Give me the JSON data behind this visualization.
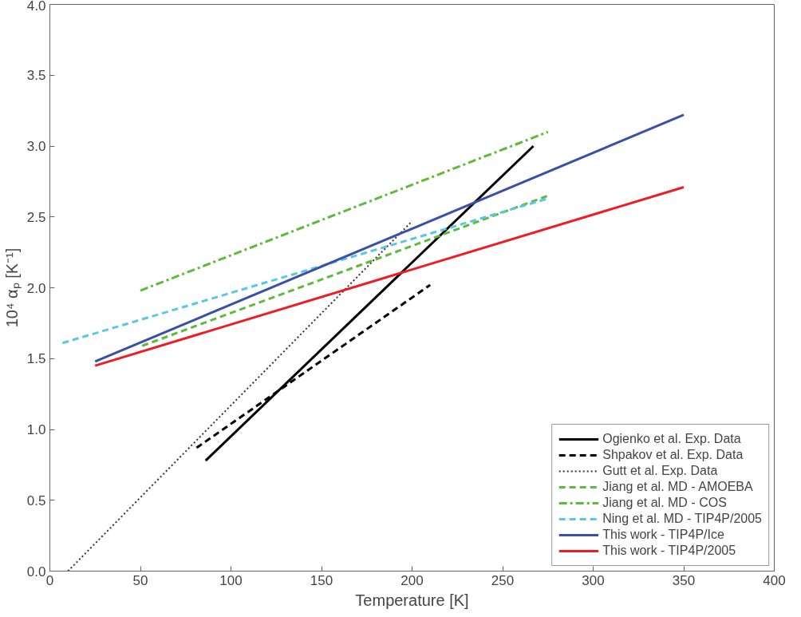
{
  "chart_data": {
    "type": "line",
    "xlabel": "Temperature [K]",
    "ylabel": "10⁴ αₚ [K⁻¹]",
    "xlim": [
      0,
      400
    ],
    "ylim": [
      0,
      4
    ],
    "xticks": [
      0,
      50,
      100,
      150,
      200,
      250,
      300,
      350,
      400
    ],
    "yticks": [
      {
        "value": 0,
        "label": "0.0"
      },
      {
        "value": 0.5,
        "label": "0.5"
      },
      {
        "value": 1,
        "label": "1.0"
      },
      {
        "value": 1.5,
        "label": "1.5"
      },
      {
        "value": 2,
        "label": "2.0"
      },
      {
        "value": 2.5,
        "label": "2.5"
      },
      {
        "value": 3,
        "label": "3.0"
      },
      {
        "value": 3.5,
        "label": "3.5"
      },
      {
        "value": 4,
        "label": "4.0"
      }
    ],
    "grid": false,
    "legend": "bottom right",
    "series": [
      {
        "name": "Ogienko et al. Exp. Data",
        "color": "#000000",
        "line_style": "solid",
        "x": [
          86,
          267
        ],
        "values": [
          0.78,
          3.0
        ]
      },
      {
        "name": "Shpakov et al. Exp. Data",
        "color": "#000000",
        "line_style": "dashed",
        "x": [
          81,
          210
        ],
        "values": [
          0.87,
          2.02
        ]
      },
      {
        "name": "Gutt et al. Exp. Data",
        "color": "#333333",
        "line_style": "dotted",
        "x": [
          10,
          200
        ],
        "values": [
          0.0,
          2.47
        ]
      },
      {
        "name": "Jiang et al. MD - AMOEBA",
        "color": "#5dba3b",
        "line_style": "dashed",
        "x": [
          51,
          275
        ],
        "values": [
          1.59,
          2.65
        ]
      },
      {
        "name": "Jiang et al. MD - COS",
        "color": "#5dba3b",
        "line_style": "dashdot",
        "x": [
          50,
          275
        ],
        "values": [
          1.98,
          3.1
        ]
      },
      {
        "name": "Ning et al. MD - TIP4P/2005",
        "color": "#5bc8e0",
        "line_style": "dashed",
        "x": [
          7,
          275
        ],
        "values": [
          1.61,
          2.63
        ]
      },
      {
        "name": "This work - TIP4P/Ice",
        "color": "#3a4fa8",
        "line_style": "solid",
        "x": [
          25,
          350
        ],
        "values": [
          1.48,
          3.22
        ]
      },
      {
        "name": "This work - TIP4P/2005",
        "color": "#ee1c24",
        "line_style": "solid",
        "x": [
          25,
          350
        ],
        "values": [
          1.45,
          2.71
        ]
      }
    ]
  }
}
